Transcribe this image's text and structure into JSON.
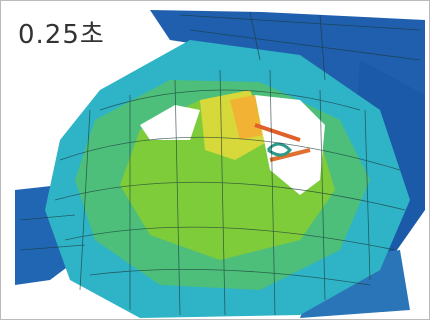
{
  "label": "0.25초"
}
